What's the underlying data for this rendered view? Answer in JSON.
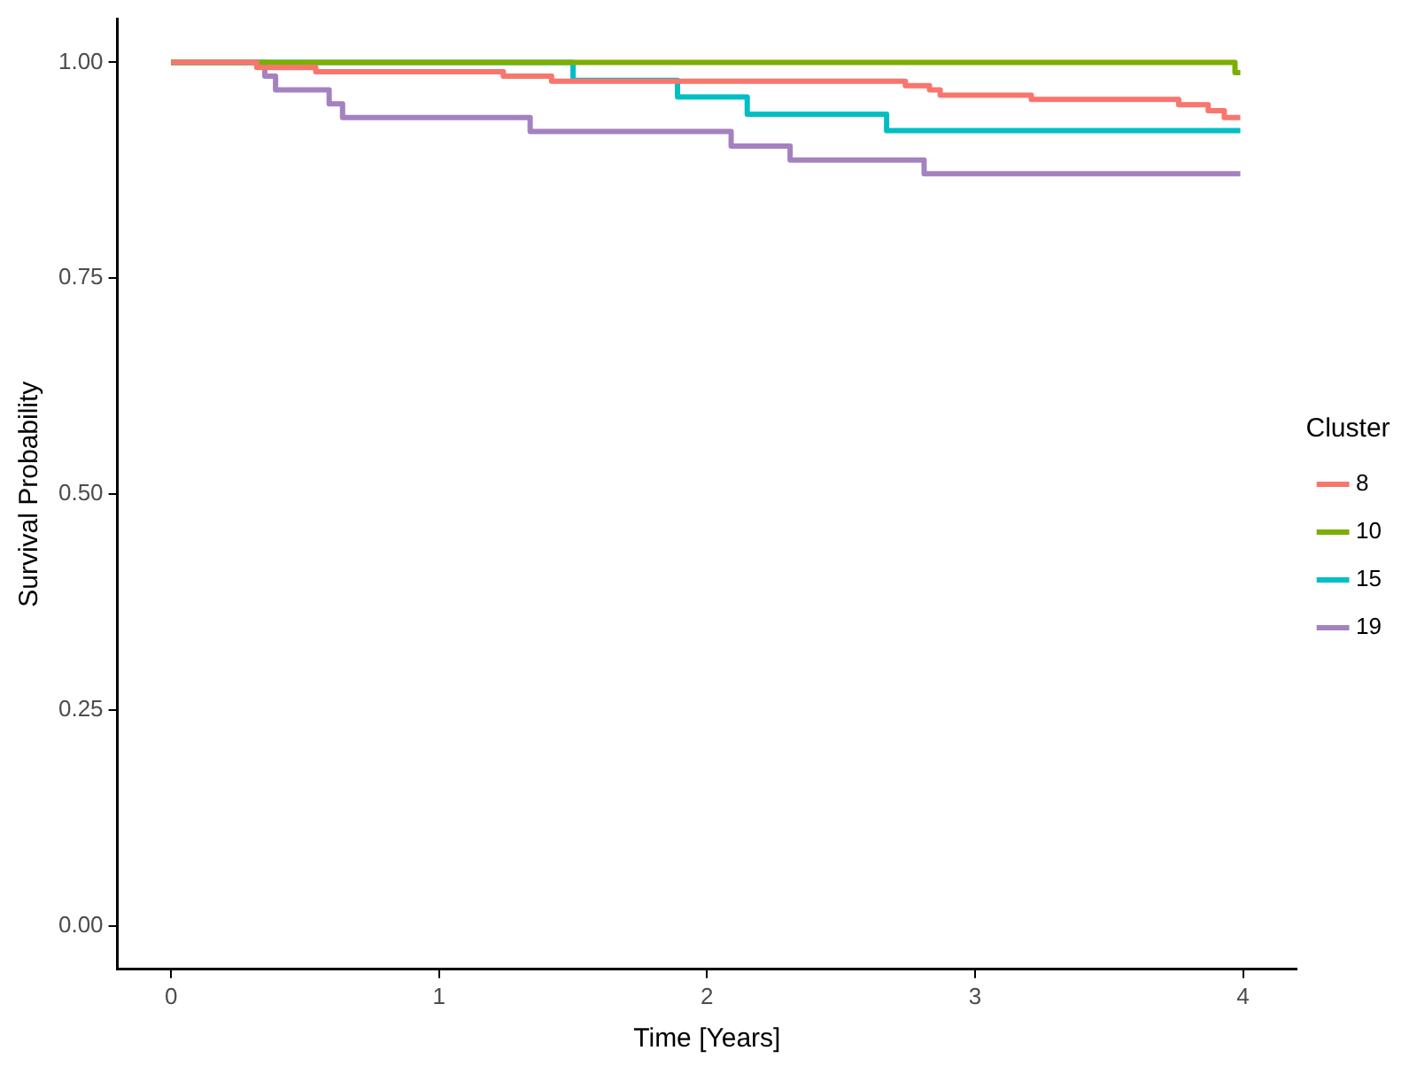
{
  "chart_data": {
    "type": "step",
    "xlabel": "Time [Years]",
    "ylabel": "Survival Probability",
    "legend_title": "Cluster",
    "legend": "right",
    "grid": false,
    "xlim": [
      -0.2,
      4.2
    ],
    "xticks": [
      0,
      1,
      2,
      3,
      4
    ],
    "ylim": [
      -0.05,
      1.05
    ],
    "yticks": [
      {
        "value": 0,
        "label": "0.00"
      },
      {
        "value": 0.25,
        "label": "0.25"
      },
      {
        "value": 0.5,
        "label": "0.50"
      },
      {
        "value": 0.75,
        "label": "0.75"
      },
      {
        "value": 1,
        "label": "1.00"
      }
    ],
    "series": [
      {
        "name": "8",
        "color": "#f8766d",
        "x": [
          0,
          0.32,
          0.54,
          1.24,
          1.42,
          2.74,
          2.83,
          2.87,
          3.21,
          3.76,
          3.87,
          3.93,
          3.99
        ],
        "values": [
          1,
          0.994,
          0.989,
          0.984,
          0.978,
          0.973,
          0.968,
          0.962,
          0.957,
          0.951,
          0.944,
          0.936,
          0.936
        ]
      },
      {
        "name": "10",
        "color": "#7cae00",
        "x": [
          0,
          3.97,
          3.99
        ],
        "values": [
          1,
          0.988,
          0.988
        ]
      },
      {
        "name": "15",
        "color": "#00bfc4",
        "x": [
          0,
          1.5,
          1.89,
          2.15,
          2.67,
          3.99
        ],
        "values": [
          1,
          0.979,
          0.96,
          0.94,
          0.921,
          0.921
        ]
      },
      {
        "name": "19",
        "color": "#a482c0",
        "x": [
          0,
          0.35,
          0.39,
          0.59,
          0.64,
          1.34,
          2.09,
          2.31,
          2.81,
          3.99
        ],
        "values": [
          1,
          0.984,
          0.968,
          0.952,
          0.936,
          0.92,
          0.903,
          0.887,
          0.871,
          0.871
        ]
      }
    ]
  }
}
